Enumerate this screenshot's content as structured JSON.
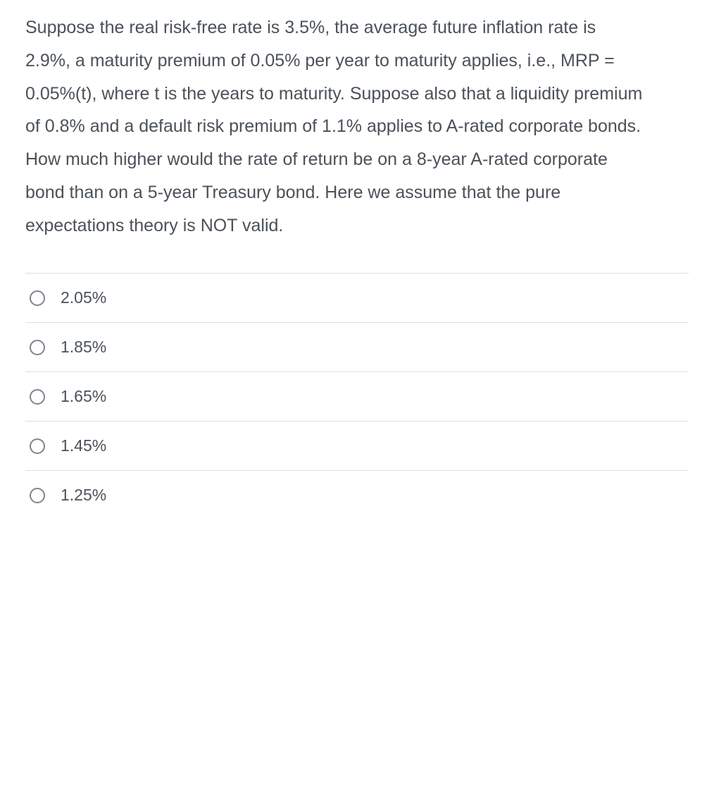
{
  "question": {
    "paragraphs": [
      "Suppose the real risk-free rate is 3.5%, the average future inflation rate is",
      "2.9%, a maturity premium of 0.05% per year to maturity applies, i.e., MRP =",
      "0.05%(t), where t is the years to maturity.  Suppose also that a liquidity premium",
      "of 0.8% and a default risk premium of 1.1% applies to A-rated corporate bonds.",
      "How much higher would the rate of return be on a 8-year A-rated corporate",
      "bond than on a 5-year Treasury bond.  Here we assume that the pure",
      "expectations theory is NOT valid."
    ]
  },
  "options": [
    {
      "label": "2.05%"
    },
    {
      "label": "1.85%"
    },
    {
      "label": "1.65%"
    },
    {
      "label": "1.45%"
    },
    {
      "label": "1.25%"
    }
  ],
  "colors": {
    "text": "#4a5159",
    "border": "#dcdfe3",
    "radio_border": "#7d8590",
    "background": "#ffffff"
  },
  "typography": {
    "question_fontsize": 25,
    "option_fontsize": 23,
    "line_height": 1.55
  }
}
